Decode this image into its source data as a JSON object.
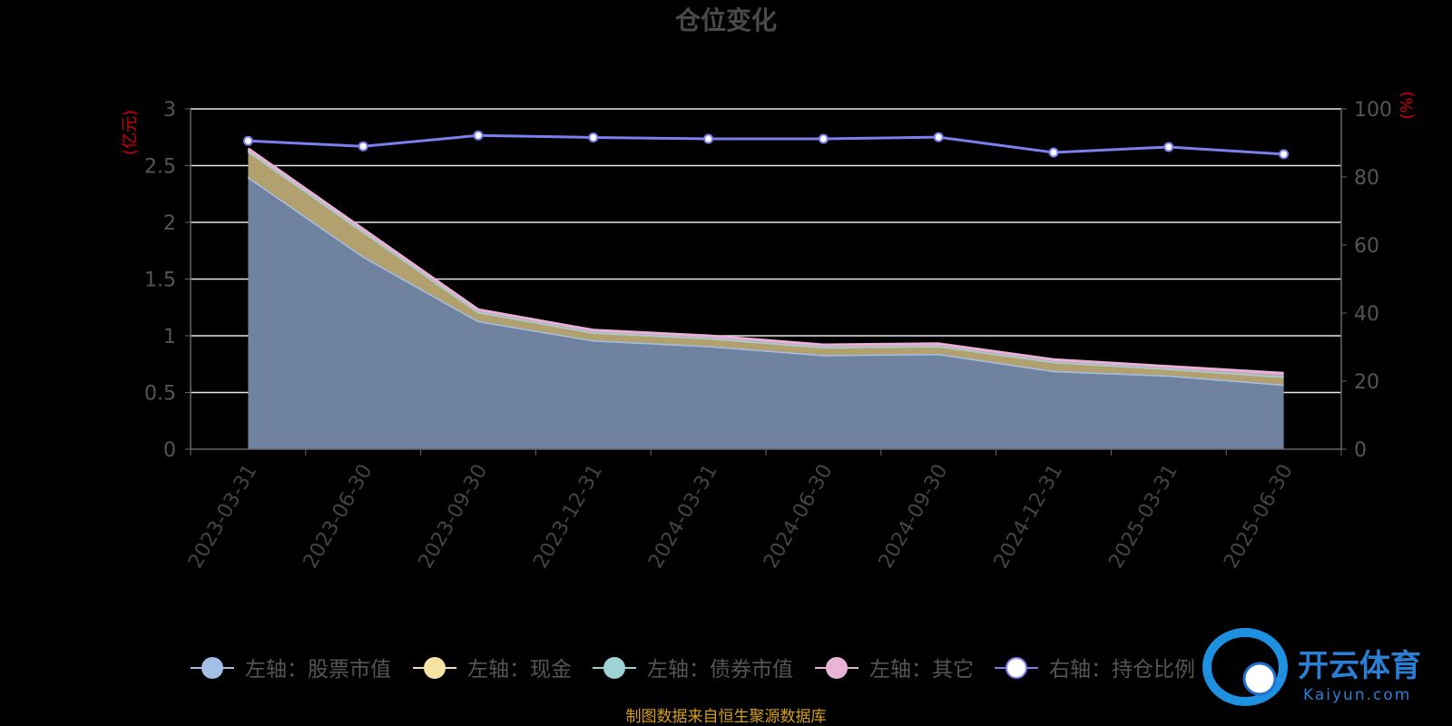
{
  "chart_data": {
    "type": "area",
    "title": "仓位变化",
    "left_axis_unit": "(亿元)",
    "right_axis_unit": "(%)",
    "categories": [
      "2023-03-31",
      "2023-06-30",
      "2023-09-30",
      "2023-12-31",
      "2024-03-31",
      "2024-06-30",
      "2024-09-30",
      "2024-12-31",
      "2025-03-31",
      "2025-06-30"
    ],
    "left_ylim": [
      0,
      3
    ],
    "left_ticks": [
      "0",
      "0.5",
      "1",
      "1.5",
      "2",
      "2.5",
      "3"
    ],
    "right_ylim": [
      0,
      100
    ],
    "right_ticks": [
      "0",
      "20",
      "40",
      "60",
      "80",
      "100"
    ],
    "grid": true,
    "legend_position": "bottom",
    "stacked": true,
    "series": [
      {
        "name": "左轴：股票市值",
        "axis": "left",
        "color": "#a3bfe6",
        "values": [
          2.4,
          1.7,
          1.13,
          0.96,
          0.91,
          0.83,
          0.84,
          0.69,
          0.65,
          0.57
        ]
      },
      {
        "name": "左轴：现金",
        "axis": "left",
        "color": "#f5e3a3",
        "values": [
          0.23,
          0.22,
          0.08,
          0.07,
          0.07,
          0.07,
          0.07,
          0.08,
          0.06,
          0.07
        ]
      },
      {
        "name": "左轴：债券市值",
        "axis": "left",
        "color": "#9ed3d3",
        "values": [
          0,
          0,
          0,
          0,
          0,
          0,
          0,
          0,
          0,
          0
        ]
      },
      {
        "name": "左轴：其它",
        "axis": "left",
        "color": "#e9b3d6",
        "values": [
          0.02,
          0.02,
          0.02,
          0.02,
          0.02,
          0.02,
          0.02,
          0.02,
          0.02,
          0.03
        ]
      },
      {
        "name": "右轴：持仓比例",
        "axis": "right",
        "color": "#7b7ff0",
        "values": [
          90.6,
          89.0,
          92.2,
          91.6,
          91.2,
          91.2,
          91.7,
          87.2,
          88.8,
          86.7
        ]
      }
    ]
  },
  "footer": {
    "source": "制图数据来自恒生聚源数据库"
  },
  "watermark": {
    "brand": "开云体育",
    "domain": "Kaiyun.com"
  }
}
